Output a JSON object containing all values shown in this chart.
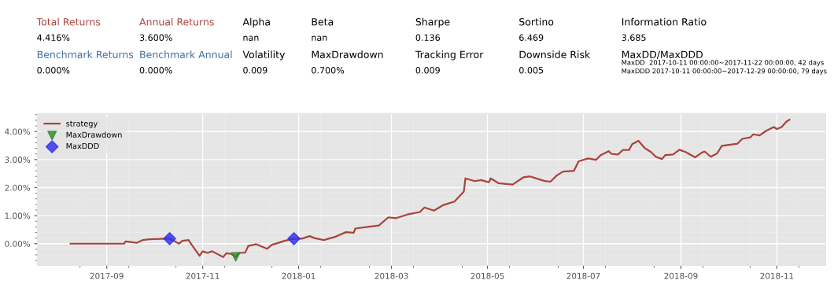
{
  "chart_data": {
    "type": "line",
    "annotations": [
      "Total Returns",
      "Annual Returns",
      "Alpha",
      "Beta",
      "Sharpe",
      "Sortino",
      "Information Ratio",
      "4.416%",
      "3.600%",
      "nan",
      "nan",
      "0.136",
      "6.469",
      "3.685",
      "Benchmark Returns",
      "Benchmark Annual",
      "Volatility",
      "MaxDrawdown",
      "Tracking Error",
      "Downside Risk",
      "MaxDD/MaxDDD",
      "0.000%",
      "0.000%",
      "0.009",
      "0.700%",
      "0.009",
      "0.005",
      "MaxDD  2017-10-11 00:00:00~2017-11-22 00:00:00, 42 days",
      "MaxDDD 2017-10-11 00:00:00~2017-12-29 00:00:00, 79 days"
    ],
    "series": [
      {
        "name": "strategy",
        "color": "#a8443c",
        "x": [
          "2017-08-09",
          "2017-09-12",
          "2017-09-13",
          "2017-09-20",
          "2017-09-24",
          "2017-09-28",
          "2017-10-09",
          "2017-10-11",
          "2017-10-17",
          "2017-10-19",
          "2017-10-23",
          "2017-10-25",
          "2017-10-30",
          "2017-11-01",
          "2017-11-04",
          "2017-11-07",
          "2017-11-14",
          "2017-11-16",
          "2017-11-19",
          "2017-11-22",
          "2017-11-24",
          "2017-11-28",
          "2017-11-30",
          "2017-12-05",
          "2017-12-12",
          "2017-12-15",
          "2017-12-18",
          "2017-12-23",
          "2017-12-29",
          "2018-01-03",
          "2018-01-08",
          "2018-01-11",
          "2018-01-17",
          "2018-01-24",
          "2018-01-31",
          "2018-02-05",
          "2018-02-06",
          "2018-02-13",
          "2018-02-21",
          "2018-02-27",
          "2018-03-04",
          "2018-03-11",
          "2018-03-19",
          "2018-03-22",
          "2018-03-28",
          "2018-04-03",
          "2018-04-10",
          "2018-04-16",
          "2018-04-17",
          "2018-04-23",
          "2018-04-27",
          "2018-05-02",
          "2018-05-03",
          "2018-05-08",
          "2018-05-17",
          "2018-05-24",
          "2018-05-28",
          "2018-06-06",
          "2018-06-10",
          "2018-06-14",
          "2018-06-18",
          "2018-06-25",
          "2018-06-28",
          "2018-07-04",
          "2018-07-09",
          "2018-07-12",
          "2018-07-17",
          "2018-07-19",
          "2018-07-23",
          "2018-07-26",
          "2018-07-30",
          "2018-08-01",
          "2018-08-05",
          "2018-08-09",
          "2018-08-13",
          "2018-08-16",
          "2018-08-20",
          "2018-08-22",
          "2018-08-27",
          "2018-08-31",
          "2018-09-04",
          "2018-09-10",
          "2018-09-14",
          "2018-09-16",
          "2018-09-20",
          "2018-09-24",
          "2018-09-27",
          "2018-10-07",
          "2018-10-10",
          "2018-10-15",
          "2018-10-17",
          "2018-10-21",
          "2018-10-25",
          "2018-10-30",
          "2018-11-01",
          "2018-11-04",
          "2018-11-07",
          "2018-11-09"
        ],
        "values": [
          0,
          0,
          0.08,
          0.03,
          0.13,
          0.16,
          0.18,
          0.18,
          0.0,
          0.1,
          0.13,
          -0.04,
          -0.43,
          -0.27,
          -0.33,
          -0.27,
          -0.48,
          -0.34,
          -0.36,
          -0.47,
          -0.33,
          -0.32,
          -0.08,
          -0.02,
          -0.18,
          -0.04,
          0.01,
          0.1,
          0.18,
          0.18,
          0.27,
          0.2,
          0.13,
          0.24,
          0.41,
          0.39,
          0.54,
          0.59,
          0.65,
          0.94,
          0.91,
          1.04,
          1.13,
          1.29,
          1.18,
          1.38,
          1.5,
          1.86,
          2.33,
          2.23,
          2.27,
          2.19,
          2.33,
          2.16,
          2.11,
          2.37,
          2.4,
          2.24,
          2.21,
          2.43,
          2.57,
          2.6,
          2.94,
          3.04,
          2.99,
          3.16,
          3.3,
          3.2,
          3.18,
          3.34,
          3.34,
          3.55,
          3.67,
          3.41,
          3.27,
          3.1,
          3.02,
          3.16,
          3.18,
          3.35,
          3.27,
          3.08,
          3.24,
          3.29,
          3.1,
          3.22,
          3.49,
          3.57,
          3.74,
          3.79,
          3.9,
          3.86,
          4.02,
          4.16,
          4.09,
          4.16,
          4.35,
          4.42
        ]
      },
      {
        "name": "MaxDrawdown",
        "color": "#2e8b2e",
        "type": "scatter",
        "marker": "triangle",
        "x": [
          "2017-11-22"
        ],
        "values": [
          -0.47
        ]
      },
      {
        "name": "MaxDDD",
        "color": "#2b2bf0",
        "type": "scatter",
        "marker": "diamond",
        "x": [
          "2017-10-11",
          "2017-12-29"
        ],
        "values": [
          0.18,
          0.18
        ]
      }
    ],
    "xlim": [
      "2017-07-19",
      "2018-12-02"
    ],
    "xticks": [
      {
        "value": "2017-09-01",
        "label": "2017-09"
      },
      {
        "value": "2017-11-01",
        "label": "2017-11"
      },
      {
        "value": "2018-01-01",
        "label": "2018-01"
      },
      {
        "value": "2018-03-01",
        "label": "2018-03"
      },
      {
        "value": "2018-05-01",
        "label": "2018-05"
      },
      {
        "value": "2018-07-01",
        "label": "2018-07"
      },
      {
        "value": "2018-09-01",
        "label": "2018-09"
      },
      {
        "value": "2018-11-01",
        "label": "2018-11"
      }
    ],
    "ylim": [
      -0.78,
      4.64
    ],
    "yticks": [
      {
        "value": 0,
        "label": "0.00%"
      },
      {
        "value": 1,
        "label": "1.00%"
      },
      {
        "value": 2,
        "label": "2.00%"
      },
      {
        "value": 3,
        "label": "3.00%"
      },
      {
        "value": 4,
        "label": "4.00%"
      }
    ],
    "grid": true,
    "legend": "top left"
  }
}
